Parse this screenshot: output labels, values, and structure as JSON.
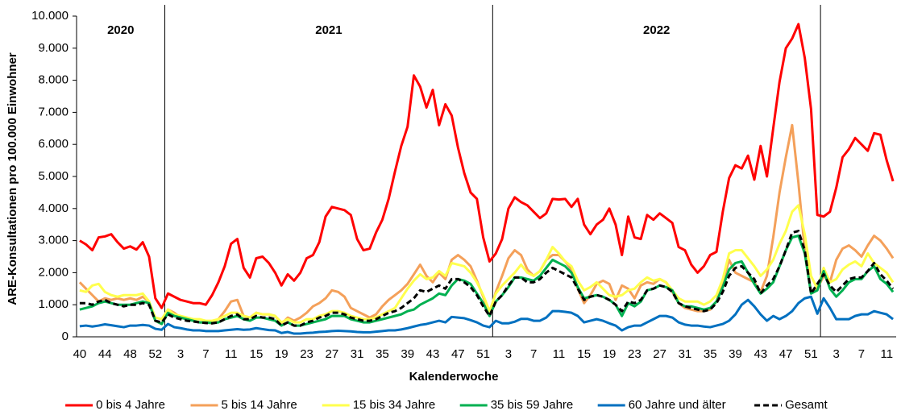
{
  "chart_data": {
    "type": "line",
    "xlabel": "Kalenderwoche",
    "ylabel": "ARE-Konsultationen pro 100.000 Einwohner",
    "annotations": [
      "2020",
      "2021",
      "2022"
    ],
    "categories": [
      "40",
      null,
      null,
      null,
      "44",
      null,
      null,
      null,
      "48",
      null,
      null,
      null,
      "52",
      null,
      null,
      null,
      "3",
      null,
      null,
      null,
      "7",
      null,
      null,
      null,
      "11",
      null,
      null,
      null,
      "15",
      null,
      null,
      null,
      "19",
      null,
      null,
      null,
      "23",
      null,
      null,
      null,
      "27",
      null,
      null,
      null,
      "31",
      null,
      null,
      null,
      "35",
      null,
      null,
      null,
      "39",
      null,
      null,
      null,
      "43",
      null,
      null,
      null,
      "47",
      null,
      null,
      null,
      "51",
      null,
      null,
      null,
      "3",
      null,
      null,
      null,
      "7",
      null,
      null,
      null,
      "11",
      null,
      null,
      null,
      "15",
      null,
      null,
      null,
      "19",
      null,
      null,
      null,
      "23",
      null,
      null,
      null,
      "27",
      null,
      null,
      null,
      "31",
      null,
      null,
      null,
      "35",
      null,
      null,
      null,
      "39",
      null,
      null,
      null,
      "43",
      null,
      null,
      null,
      "47",
      null,
      null,
      null,
      "51",
      null,
      null,
      null,
      "3",
      null,
      null,
      null,
      "7",
      null,
      null,
      null,
      "11",
      null
    ],
    "ylim": [
      0,
      10000
    ],
    "yticks": [
      0,
      {
        "value": 1000,
        "label": "1.000"
      },
      {
        "value": 2000,
        "label": "2.000"
      },
      {
        "value": 3000,
        "label": "3.000"
      },
      {
        "value": 4000,
        "label": "4.000"
      },
      {
        "value": 5000,
        "label": "5.000"
      },
      {
        "value": 6000,
        "label": "6.000"
      },
      {
        "value": 7000,
        "label": "7.000"
      },
      {
        "value": 8000,
        "label": "8.000"
      },
      {
        "value": 9000,
        "label": "9.000"
      },
      {
        "value": 10000,
        "label": "10.000"
      }
    ],
    "grid": false,
    "legend": "bottom",
    "series": [
      {
        "name": "0 bis 4 Jahre",
        "color": "#ff0000",
        "style": "solid",
        "values": [
          3000,
          2880,
          2700,
          3100,
          3130,
          3200,
          2950,
          2750,
          2820,
          2720,
          2950,
          2500,
          1200,
          900,
          1350,
          1250,
          1150,
          1100,
          1050,
          1050,
          1000,
          1300,
          1700,
          2200,
          2900,
          3050,
          2150,
          1850,
          2450,
          2500,
          2300,
          2000,
          1600,
          1950,
          1750,
          2000,
          2450,
          2550,
          2950,
          3750,
          4050,
          4000,
          3950,
          3800,
          3050,
          2700,
          2750,
          3250,
          3650,
          4300,
          5150,
          5950,
          6550,
          8150,
          7800,
          7150,
          7700,
          6600,
          7250,
          6900,
          5900,
          5100,
          4500,
          4300,
          3100,
          2350,
          2600,
          3050,
          4000,
          4350,
          4200,
          4100,
          3900,
          3700,
          3850,
          4300,
          4280,
          4300,
          4050,
          4300,
          3500,
          3200,
          3500,
          3650,
          4000,
          3500,
          2550,
          3750,
          3100,
          3050,
          3800,
          3650,
          3850,
          3700,
          3550,
          2800,
          2700,
          2250,
          2000,
          2200,
          2550,
          2650,
          3900,
          4950,
          5350,
          5250,
          5650,
          4900,
          5950,
          5000,
          6500,
          7950,
          9000,
          9300,
          9750,
          8700,
          7100,
          3800,
          3750,
          3900,
          4650,
          5600,
          5850,
          6200,
          6000,
          5800,
          6350,
          6300,
          5500,
          4850
        ]
      },
      {
        "name": "5 bis 14 Jahre",
        "color": "#f4a05a",
        "style": "solid",
        "values": [
          1700,
          1500,
          1300,
          1100,
          1200,
          1150,
          1200,
          1150,
          1200,
          1150,
          1250,
          1100,
          500,
          400,
          850,
          750,
          600,
          550,
          500,
          450,
          450,
          420,
          550,
          800,
          1100,
          1150,
          650,
          600,
          750,
          700,
          700,
          650,
          400,
          600,
          500,
          600,
          750,
          950,
          1050,
          1200,
          1450,
          1400,
          1250,
          900,
          800,
          700,
          600,
          700,
          950,
          1150,
          1300,
          1450,
          1650,
          1950,
          2250,
          1900,
          1700,
          2000,
          1800,
          2400,
          2550,
          2400,
          2200,
          1750,
          1250,
          700,
          1400,
          1900,
          2450,
          2700,
          2550,
          2100,
          1900,
          2050,
          2400,
          2550,
          2550,
          2350,
          2100,
          1500,
          1050,
          1300,
          1650,
          1750,
          1650,
          1150,
          1600,
          1500,
          1200,
          1600,
          1700,
          1650,
          1800,
          1700,
          1400,
          1050,
          900,
          850,
          800,
          800,
          850,
          1100,
          1700,
          2400,
          2000,
          1900,
          1800,
          1700,
          1400,
          1900,
          3100,
          4500,
          5600,
          6600,
          4800,
          2700,
          1400,
          1500,
          1900,
          1700,
          2400,
          2750,
          2850,
          2700,
          2500,
          2850,
          3150,
          3000,
          2750,
          2450
        ]
      },
      {
        "name": "15 bis 34 Jahre",
        "color": "#ffff4d",
        "style": "solid",
        "values": [
          1450,
          1400,
          1600,
          1650,
          1400,
          1300,
          1250,
          1300,
          1300,
          1300,
          1350,
          1100,
          600,
          550,
          850,
          700,
          650,
          600,
          550,
          550,
          500,
          500,
          550,
          650,
          750,
          750,
          650,
          600,
          750,
          700,
          700,
          650,
          450,
          550,
          450,
          450,
          550,
          550,
          650,
          700,
          800,
          800,
          750,
          650,
          600,
          550,
          550,
          600,
          700,
          800,
          900,
          1200,
          1500,
          1750,
          1950,
          1800,
          1850,
          2050,
          1900,
          2300,
          2250,
          2200,
          2000,
          1700,
          1300,
          800,
          1350,
          1600,
          1800,
          2000,
          2250,
          2000,
          1900,
          2050,
          2400,
          2800,
          2600,
          2350,
          2200,
          1750,
          1450,
          1550,
          1700,
          1500,
          1300,
          1250,
          1300,
          1450,
          1500,
          1700,
          1850,
          1750,
          1800,
          1700,
          1450,
          1200,
          1100,
          1100,
          1100,
          1000,
          1100,
          1300,
          1800,
          2600,
          2700,
          2700,
          2450,
          2200,
          1900,
          2100,
          2400,
          2900,
          3300,
          3900,
          4100,
          3200,
          1900,
          1500,
          2150,
          1700,
          1800,
          2100,
          2250,
          2350,
          2200,
          2600,
          2300,
          2150,
          2000,
          1700
        ]
      },
      {
        "name": "35 bis 59 Jahre",
        "color": "#00b050",
        "style": "solid",
        "values": [
          850,
          900,
          950,
          1050,
          1100,
          1050,
          1000,
          1000,
          1000,
          1050,
          1100,
          1050,
          500,
          400,
          750,
          650,
          600,
          550,
          500,
          450,
          450,
          430,
          450,
          550,
          600,
          650,
          550,
          500,
          600,
          600,
          550,
          500,
          350,
          450,
          350,
          350,
          400,
          450,
          500,
          550,
          650,
          650,
          650,
          550,
          500,
          450,
          450,
          500,
          550,
          600,
          650,
          700,
          800,
          850,
          1000,
          1100,
          1200,
          1350,
          1300,
          1600,
          1800,
          1750,
          1650,
          1350,
          1050,
          650,
          1100,
          1300,
          1550,
          1850,
          1850,
          1800,
          1750,
          1900,
          2150,
          2400,
          2300,
          2200,
          2000,
          1550,
          1200,
          1250,
          1300,
          1250,
          1150,
          1000,
          650,
          1050,
          950,
          1100,
          1450,
          1500,
          1600,
          1550,
          1450,
          1050,
          950,
          950,
          900,
          850,
          900,
          1100,
          1550,
          2100,
          2300,
          2350,
          2000,
          1650,
          1350,
          1500,
          1700,
          2200,
          2700,
          3100,
          3150,
          2600,
          1350,
          1450,
          2050,
          1500,
          1250,
          1450,
          1700,
          1800,
          1800,
          2050,
          2200,
          1800,
          1650,
          1400
        ]
      },
      {
        "name": "60 Jahre und älter",
        "color": "#0070c0",
        "style": "solid",
        "values": [
          330,
          350,
          320,
          350,
          390,
          360,
          330,
          300,
          350,
          350,
          370,
          350,
          250,
          220,
          400,
          300,
          270,
          230,
          200,
          200,
          180,
          180,
          180,
          200,
          220,
          240,
          220,
          230,
          270,
          240,
          210,
          200,
          120,
          150,
          100,
          100,
          120,
          130,
          150,
          160,
          180,
          190,
          180,
          170,
          150,
          140,
          140,
          160,
          180,
          200,
          200,
          230,
          270,
          320,
          370,
          400,
          450,
          500,
          450,
          620,
          600,
          580,
          520,
          450,
          350,
          300,
          500,
          420,
          420,
          470,
          560,
          560,
          500,
          500,
          600,
          800,
          800,
          780,
          750,
          650,
          450,
          500,
          550,
          500,
          420,
          350,
          200,
          300,
          350,
          350,
          450,
          550,
          650,
          650,
          600,
          450,
          380,
          350,
          350,
          320,
          300,
          350,
          400,
          500,
          700,
          1000,
          1150,
          950,
          700,
          500,
          650,
          550,
          650,
          800,
          1050,
          1200,
          1250,
          720,
          1200,
          900,
          550,
          550,
          550,
          650,
          700,
          700,
          800,
          750,
          700,
          550
        ]
      },
      {
        "name": "Gesamt",
        "color": "#000000",
        "style": "dashed",
        "values": [
          1050,
          1050,
          1000,
          1100,
          1150,
          1050,
          1000,
          950,
          1000,
          1000,
          1050,
          1000,
          500,
          450,
          700,
          600,
          550,
          500,
          480,
          450,
          430,
          420,
          450,
          550,
          650,
          700,
          550,
          550,
          650,
          600,
          600,
          550,
          350,
          450,
          350,
          350,
          450,
          500,
          600,
          650,
          750,
          750,
          700,
          600,
          550,
          500,
          500,
          550,
          650,
          750,
          800,
          900,
          1050,
          1200,
          1450,
          1400,
          1500,
          1600,
          1500,
          1800,
          1800,
          1700,
          1550,
          1300,
          950,
          650,
          1100,
          1300,
          1600,
          1850,
          1850,
          1700,
          1700,
          1800,
          2000,
          2150,
          2050,
          1950,
          1850,
          1500,
          1150,
          1250,
          1300,
          1250,
          1150,
          1000,
          800,
          1100,
          1050,
          1150,
          1450,
          1500,
          1600,
          1550,
          1400,
          1050,
          950,
          900,
          850,
          800,
          850,
          1050,
          1400,
          1900,
          2150,
          2200,
          2000,
          1800,
          1350,
          1600,
          1800,
          2200,
          2700,
          3250,
          3300,
          2700,
          1350,
          1650,
          1950,
          1600,
          1400,
          1600,
          1800,
          1850,
          1850,
          2050,
          2300,
          1950,
          1750,
          1500
        ]
      }
    ]
  }
}
